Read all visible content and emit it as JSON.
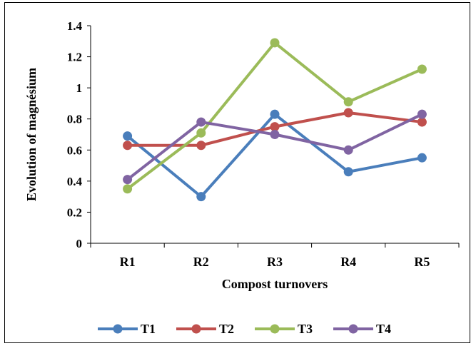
{
  "chart_data": {
    "type": "line",
    "title": "",
    "xlabel": "Compost turnovers",
    "ylabel": "Evolution of  magnésium",
    "categories": [
      "R1",
      "R2",
      "R3",
      "R4",
      "R5"
    ],
    "ylim": [
      0,
      1.4
    ],
    "yticks": [
      "0",
      "0.2",
      "0.4",
      "0.6",
      "0.8",
      "1",
      "1.2",
      "1.4"
    ],
    "grid": false,
    "legend_position": "bottom",
    "series": [
      {
        "name": "T1",
        "color": "#4a7ebb",
        "values": [
          0.69,
          0.3,
          0.83,
          0.46,
          0.55
        ]
      },
      {
        "name": "T2",
        "color": "#c0504d",
        "values": [
          0.63,
          0.63,
          0.75,
          0.84,
          0.78
        ]
      },
      {
        "name": "T3",
        "color": "#9bbb59",
        "values": [
          0.35,
          0.71,
          1.29,
          0.91,
          1.12
        ]
      },
      {
        "name": "T4",
        "color": "#8064a2",
        "values": [
          0.41,
          0.78,
          0.7,
          0.6,
          0.83
        ]
      }
    ]
  }
}
